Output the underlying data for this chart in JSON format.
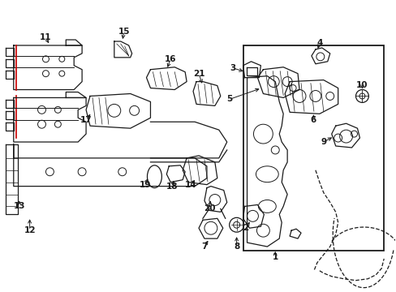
{
  "background_color": "#ffffff",
  "line_color": "#1a1a1a",
  "red_color": "#cc0000",
  "fig_width": 4.89,
  "fig_height": 3.6,
  "dpi": 100
}
